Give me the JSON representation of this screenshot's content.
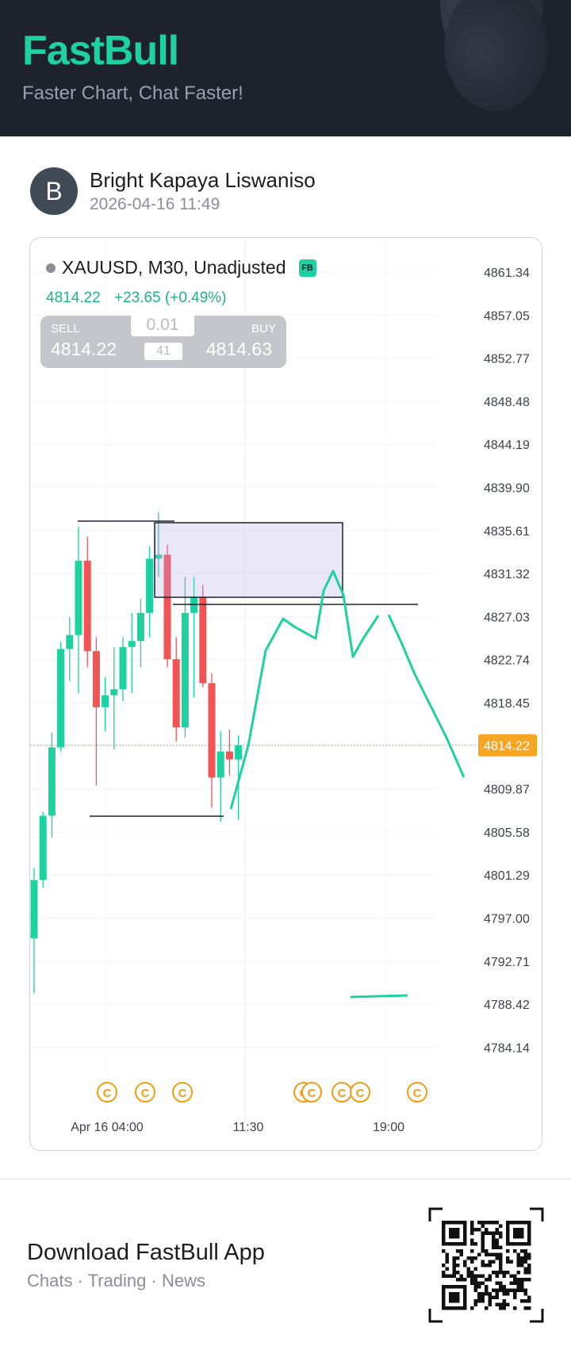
{
  "header": {
    "brand": "FastBull",
    "tagline": "Faster Chart, Chat Faster!"
  },
  "author": {
    "initial": "B",
    "name": "Bright Kapaya Liswaniso",
    "timestamp": "2026-04-16 11:49"
  },
  "chart_header": {
    "symbol": "XAUUSD, M30, Unadjusted",
    "badge": "FB",
    "last_price": "4814.22",
    "change": "+23.65 (+0.49%)"
  },
  "trade_panel": {
    "sell_label": "SELL",
    "sell_price": "4814.22",
    "buy_label": "BUY",
    "buy_price": "4814.63",
    "lot": "0.01",
    "spread": "41"
  },
  "chart_data": {
    "type": "candlestick",
    "y_ticks": [
      "4861.34",
      "4857.05",
      "4852.77",
      "4848.48",
      "4844.19",
      "4839.90",
      "4835.61",
      "4831.32",
      "4827.03",
      "4822.74",
      "4818.45",
      "4814.22",
      "4809.87",
      "4805.58",
      "4801.29",
      "4797.00",
      "4792.71",
      "4788.42",
      "4784.14"
    ],
    "ylim": [
      4784.14,
      4861.34
    ],
    "x_ticks": [
      "Apr 16 04:00",
      "11:30",
      "19:00"
    ],
    "current_price_label": "4814.22",
    "candles": [
      {
        "o": 4795.0,
        "h": 4802.0,
        "l": 4789.5,
        "c": 4800.8
      },
      {
        "o": 4800.8,
        "h": 4807.6,
        "l": 4800.0,
        "c": 4807.2
      },
      {
        "o": 4807.2,
        "h": 4815.5,
        "l": 4805.0,
        "c": 4814.0
      },
      {
        "o": 4814.0,
        "h": 4824.5,
        "l": 4813.6,
        "c": 4823.8
      },
      {
        "o": 4823.8,
        "h": 4827.0,
        "l": 4820.6,
        "c": 4825.2
      },
      {
        "o": 4825.2,
        "h": 4836.0,
        "l": 4819.4,
        "c": 4832.6
      },
      {
        "o": 4832.6,
        "h": 4835.0,
        "l": 4822.0,
        "c": 4823.6
      },
      {
        "o": 4823.6,
        "h": 4825.0,
        "l": 4810.2,
        "c": 4818.0
      },
      {
        "o": 4818.0,
        "h": 4821.0,
        "l": 4815.6,
        "c": 4819.2
      },
      {
        "o": 4819.2,
        "h": 4824.0,
        "l": 4813.8,
        "c": 4819.8
      },
      {
        "o": 4819.8,
        "h": 4825.0,
        "l": 4818.6,
        "c": 4824.0
      },
      {
        "o": 4824.0,
        "h": 4827.4,
        "l": 4819.4,
        "c": 4824.6
      },
      {
        "o": 4824.6,
        "h": 4828.8,
        "l": 4822.0,
        "c": 4827.4
      },
      {
        "o": 4827.4,
        "h": 4834.0,
        "l": 4825.0,
        "c": 4832.8
      },
      {
        "o": 4832.8,
        "h": 4837.4,
        "l": 4831.0,
        "c": 4833.2
      },
      {
        "o": 4833.2,
        "h": 4834.2,
        "l": 4822.0,
        "c": 4822.8
      },
      {
        "o": 4822.8,
        "h": 4825.0,
        "l": 4814.6,
        "c": 4816.0
      },
      {
        "o": 4816.0,
        "h": 4831.0,
        "l": 4815.0,
        "c": 4827.4
      },
      {
        "o": 4827.4,
        "h": 4831.0,
        "l": 4819.0,
        "c": 4829.0
      },
      {
        "o": 4829.0,
        "h": 4830.2,
        "l": 4820.0,
        "c": 4820.4
      },
      {
        "o": 4820.4,
        "h": 4821.4,
        "l": 4808.0,
        "c": 4811.0
      },
      {
        "o": 4811.0,
        "h": 4815.6,
        "l": 4806.6,
        "c": 4813.6
      },
      {
        "o": 4813.6,
        "h": 4815.8,
        "l": 4811.2,
        "c": 4812.8
      },
      {
        "o": 4812.8,
        "h": 4815.2,
        "l": 4806.8,
        "c": 4814.2
      }
    ],
    "event_markers": [
      "C",
      "C",
      "C",
      "C",
      "C",
      "C",
      "C",
      "C"
    ]
  },
  "footer": {
    "title": "Download FastBull App",
    "subtitle": "Chats · Trading · News"
  },
  "colors": {
    "brand": "#1dd1a1",
    "up": "#1dd1a1",
    "down": "#f05454",
    "price_tag": "#f5a623",
    "drawing": "#1dd1a1"
  }
}
